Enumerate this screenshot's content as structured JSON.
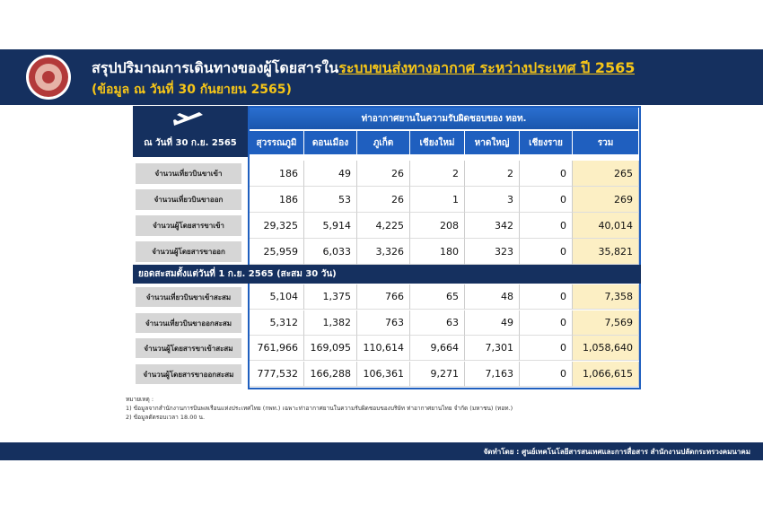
{
  "header": {
    "title_part1": "สรุปปริมาณการเดินทางของผู้โดยสารใน",
    "title_part2": "ระบบขนส่งทางอากาศ ระหว่างประเทศ ปี 2565",
    "subtitle": "(ข้อมูล ณ วันที่ 30 กันยายน 2565)"
  },
  "table": {
    "corner": "ณ วันที่ 30 ก.ย. 2565",
    "group_header": "ท่าอากาศยานในความรับผิดชอบของ ทอท.",
    "columns": [
      "สุวรรณภูมิ",
      "ดอนเมือง",
      "ภูเก็ต",
      "เชียงใหม่",
      "หาดใหญ่",
      "เชียงราย",
      "รวม"
    ],
    "rows": [
      {
        "label": "จำนวนเที่ยวบินขาเข้า",
        "values": [
          "186",
          "49",
          "26",
          "2",
          "2",
          "0",
          "265"
        ]
      },
      {
        "label": "จำนวนเที่ยวบินขาออก",
        "values": [
          "186",
          "53",
          "26",
          "1",
          "3",
          "0",
          "269"
        ]
      },
      {
        "label": "จำนวนผู้โดยสารขาเข้า",
        "values": [
          "29,325",
          "5,914",
          "4,225",
          "208",
          "342",
          "0",
          "40,014"
        ]
      },
      {
        "label": "จำนวนผู้โดยสารขาออก",
        "values": [
          "25,959",
          "6,033",
          "3,326",
          "180",
          "323",
          "0",
          "35,821"
        ]
      }
    ],
    "section": "ยอดสะสมตั้งแต่วันที่ 1 ก.ย. 2565 (สะสม 30 วัน)",
    "cumulative_rows": [
      {
        "label": "จำนวนเที่ยวบินขาเข้าสะสม",
        "values": [
          "5,104",
          "1,375",
          "766",
          "65",
          "48",
          "0",
          "7,358"
        ]
      },
      {
        "label": "จำนวนเที่ยวบินขาออกสะสม",
        "values": [
          "5,312",
          "1,382",
          "763",
          "63",
          "49",
          "0",
          "7,569"
        ]
      },
      {
        "label": "จำนวนผู้โดยสารขาเข้าสะสม",
        "values": [
          "761,966",
          "169,095",
          "110,614",
          "9,664",
          "7,301",
          "0",
          "1,058,640"
        ]
      },
      {
        "label": "จำนวนผู้โดยสารขาออกสะสม",
        "values": [
          "777,532",
          "166,288",
          "106,361",
          "9,271",
          "7,163",
          "0",
          "1,066,615"
        ]
      }
    ]
  },
  "notes": {
    "heading": "หมายเหตุ :",
    "items": [
      "1) ข้อมูลจากสำนักงานการบินพลเรือนแห่งประเทศไทย (กพท.) เฉพาะท่าอากาศยานในความรับผิดชอบของบริษัท ท่าอากาศยานไทย จำกัด (มหาชน) (ทอท.)",
      "2) ข้อมูลตัดรอบเวลา 18.00 น."
    ]
  },
  "footer": "จัดทำโดย : ศูนย์เทคโนโลยีสารสนเทศและการสื่อสาร สำนักงานปลัดกระทรวงคมนาคม"
}
